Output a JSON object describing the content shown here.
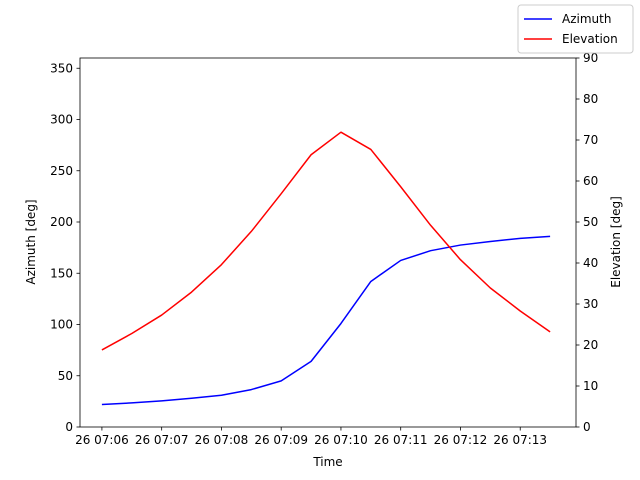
{
  "chart_data": {
    "type": "line",
    "xlabel": "Time",
    "ylabel_left": "Azimuth [deg]",
    "ylabel_right": "Elevation [deg]",
    "x_tick_labels": [
      "26 07:06",
      "26 07:07",
      "26 07:08",
      "26 07:09",
      "26 07:10",
      "26 07:11",
      "26 07:12",
      "26 07:13"
    ],
    "x": [
      "07:06:00",
      "07:06:30",
      "07:07:00",
      "07:07:30",
      "07:08:00",
      "07:08:30",
      "07:09:00",
      "07:09:30",
      "07:10:00",
      "07:10:30",
      "07:11:00",
      "07:11:30",
      "07:12:00",
      "07:12:30",
      "07:13:00",
      "07:13:30"
    ],
    "xlim": [
      "07:05:38",
      "07:13:56"
    ],
    "ylim_left": [
      0,
      360
    ],
    "ylim_right": [
      0,
      90
    ],
    "yticks_left": [
      0,
      50,
      100,
      150,
      200,
      250,
      300,
      350
    ],
    "yticks_right": [
      0,
      10,
      20,
      30,
      40,
      50,
      60,
      70,
      80,
      90
    ],
    "grid": false,
    "legend_position": "top-right (outside axes)",
    "series": [
      {
        "name": "Azimuth",
        "axis": "left",
        "color": "#0000ff",
        "values": [
          22,
          23.5,
          25.5,
          28,
          31,
          36.5,
          45,
          64,
          101,
          142,
          162.5,
          172,
          177.5,
          181,
          184,
          186
        ]
      },
      {
        "name": "Elevation",
        "axis": "right",
        "color": "#ff0000",
        "values": [
          18.8,
          22.8,
          27.3,
          32.9,
          39.6,
          47.7,
          56.9,
          66.4,
          71.9,
          67.7,
          58.6,
          49.2,
          40.8,
          33.9,
          28.3,
          23.2
        ]
      }
    ]
  }
}
